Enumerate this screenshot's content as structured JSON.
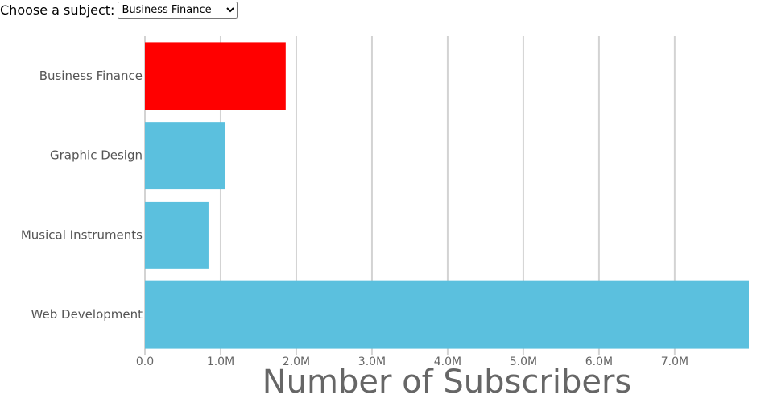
{
  "control": {
    "label": "Choose a subject:"
  },
  "chart_data": {
    "type": "bar",
    "orientation": "horizontal",
    "categories": [
      "Business Finance",
      "Graphic Design",
      "Musical Instruments",
      "Web Development"
    ],
    "values": [
      1860000,
      1060000,
      840000,
      7980000
    ],
    "color": "#5bc0de",
    "highlight_color": "#ff0000",
    "selected": "Business Finance",
    "xlabel": "Number of Subscribers",
    "xlim": [
      0,
      7980000
    ],
    "xticks": [
      {
        "value": 0,
        "label": "0.0"
      },
      {
        "value": 1000000,
        "label": "1.0M"
      },
      {
        "value": 2000000,
        "label": "2.0M"
      },
      {
        "value": 3000000,
        "label": "3.0M"
      },
      {
        "value": 4000000,
        "label": "4.0M"
      },
      {
        "value": 5000000,
        "label": "5.0M"
      },
      {
        "value": 6000000,
        "label": "6.0M"
      },
      {
        "value": 7000000,
        "label": "7.0M"
      }
    ],
    "grid": true
  }
}
